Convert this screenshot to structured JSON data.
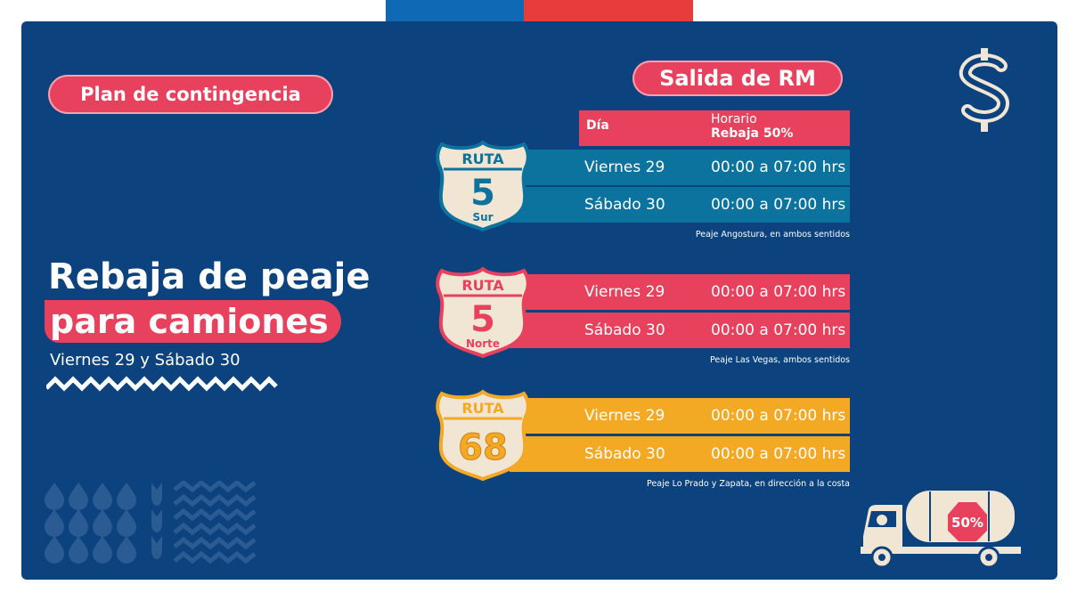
{
  "header": {
    "plan_label": "Plan de contingencia",
    "salida_label": "Salida de RM"
  },
  "headline": {
    "line1": "Rebaja de peaje",
    "line2": "para camiones",
    "dates": "Viernes 29 y Sábado 30"
  },
  "table": {
    "col_day": "Día",
    "col_hours_1": "Horario",
    "col_hours_2": "Rebaja 50%"
  },
  "routes": [
    {
      "shield_top": "RUTA",
      "shield_number": "5",
      "shield_bottom": "Sur",
      "rows": [
        {
          "day": "Viernes 29",
          "time": "00:00 a 07:00 hrs"
        },
        {
          "day": "Sábado 30",
          "time": "00:00 a 07:00 hrs"
        }
      ],
      "note": "Peaje Angostura, en ambos sentidos"
    },
    {
      "shield_top": "RUTA",
      "shield_number": "5",
      "shield_bottom": "Norte",
      "rows": [
        {
          "day": "Viernes 29",
          "time": "00:00 a 07:00 hrs"
        },
        {
          "day": "Sábado 30",
          "time": "00:00 a 07:00 hrs"
        }
      ],
      "note": "Peaje Las Vegas, ambos sentidos"
    },
    {
      "shield_top": "RUTA",
      "shield_number": "68",
      "shield_bottom": "",
      "rows": [
        {
          "day": "Viernes 29",
          "time": "00:00 a 07:00 hrs"
        },
        {
          "day": "Sábado 30",
          "time": "00:00 a 07:00 hrs"
        }
      ],
      "note": "Peaje Lo Prado y Zapata, en dirección a la costa"
    }
  ],
  "truck_badge": "50%",
  "colors": {
    "background": "#0c427d",
    "pink": "#e8415d",
    "teal": "#0c739e",
    "gold": "#f4a925",
    "cream": "#f1e6d4"
  },
  "icons": {
    "dollar": "dollar-sign-icon",
    "truck": "tanker-truck-icon"
  }
}
